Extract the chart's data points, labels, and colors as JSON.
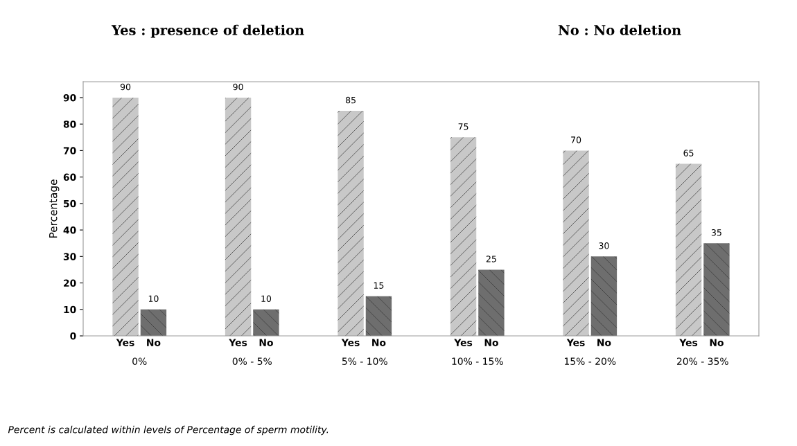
{
  "chart_data": {
    "type": "bar",
    "categories": [
      "0%",
      "0% - 5%",
      "5% - 10%",
      "10% - 15%",
      "15% - 20%",
      "20% - 35%"
    ],
    "series": [
      {
        "name": "Yes",
        "color": "#c8c8c8",
        "values": [
          90,
          90,
          85,
          75,
          70,
          65
        ]
      },
      {
        "name": "No",
        "color": "#6e6e6e",
        "values": [
          10,
          10,
          15,
          25,
          30,
          35
        ]
      }
    ],
    "ylabel": "Percentage",
    "ylim": [
      0,
      96
    ],
    "yticks": [
      0,
      10,
      20,
      30,
      40,
      50,
      60,
      70,
      80,
      90
    ],
    "data_labels": true,
    "grid": false,
    "legend": false,
    "annotations": [
      "Yes : presence of deletion",
      "No : No deletion",
      "Percent is calculated within levels of Percentage of sperm motility."
    ]
  }
}
